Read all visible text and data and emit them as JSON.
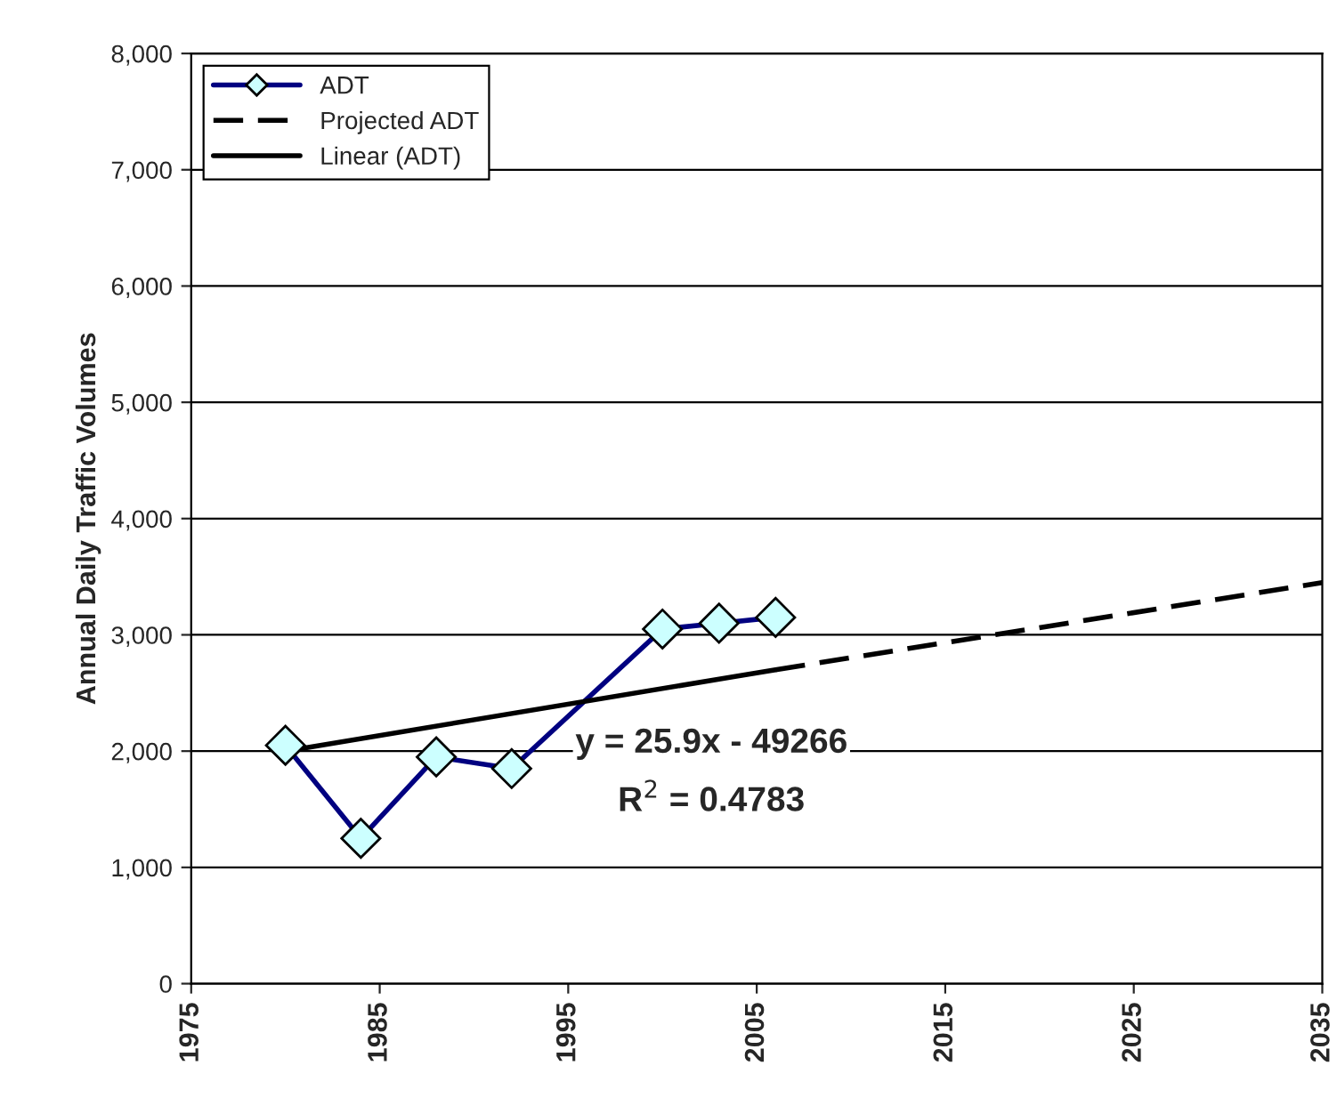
{
  "chart_data": {
    "type": "line",
    "ylabel": "Annual Daily Traffic Volumes",
    "series": [
      {
        "name": "ADT",
        "color": "#000080",
        "colors": [
          "#ccffff",
          "#ccffff",
          "#ccffff",
          "#ccffff",
          "#ccffff",
          "#ccffff",
          "#ccffff"
        ],
        "marker": "diamond",
        "line_style": "solid",
        "x": [
          1980,
          1984,
          1988,
          1992,
          2000,
          2003,
          2006
        ],
        "values": [
          2050,
          1250,
          1950,
          1850,
          3050,
          3100,
          3150
        ]
      },
      {
        "name": "Projected ADT",
        "color": "#000000",
        "line_style": "dashed",
        "x": [
          2006,
          2035
        ],
        "values": [
          2700,
          3450
        ]
      },
      {
        "name": "Linear (ADT)",
        "color": "#000000",
        "line_style": "solid",
        "x": [
          1980,
          2006
        ],
        "values": [
          2000,
          2700
        ]
      }
    ],
    "annotations": [
      "y = 25.9x - 49266",
      "R$^{2}$ = 0.4783"
    ],
    "xlim": [
      1975,
      2035
    ],
    "xticks": [
      1975,
      1985,
      1995,
      2005,
      2015,
      2025,
      2035
    ],
    "ylim": [
      0,
      8000
    ],
    "yticks": [
      {
        "value": 0,
        "label": "0"
      },
      {
        "value": 1000,
        "label": "1,000"
      },
      {
        "value": 2000,
        "label": "2,000"
      },
      {
        "value": 3000,
        "label": "3,000"
      },
      {
        "value": 4000,
        "label": "4,000"
      },
      {
        "value": 5000,
        "label": "5,000"
      },
      {
        "value": 6000,
        "label": "6,000"
      },
      {
        "value": 7000,
        "label": "7,000"
      },
      {
        "value": 8000,
        "label": "8,000"
      }
    ],
    "grid": "y",
    "legend": "top left"
  }
}
